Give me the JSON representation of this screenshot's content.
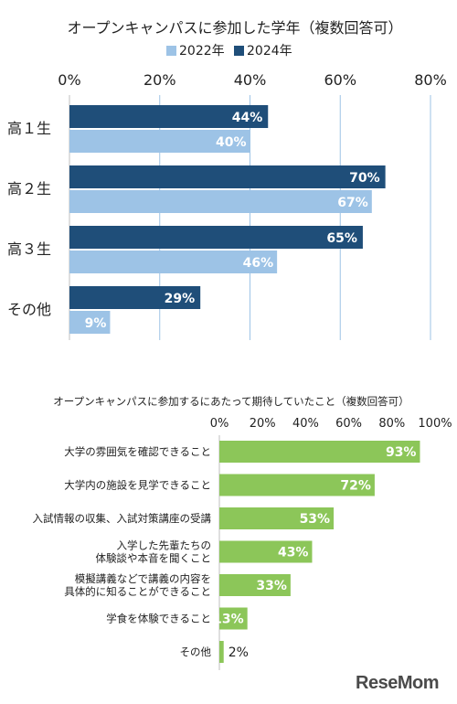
{
  "chart_data": [
    {
      "type": "bar",
      "orientation": "horizontal",
      "title": "オープンキャンパスに参加した学年（複数回答可）",
      "categories": [
        "高１生",
        "高２生",
        "高３生",
        "その他"
      ],
      "series": [
        {
          "name": "2024年",
          "values": [
            44,
            70,
            65,
            29
          ],
          "labels": [
            "44%",
            "70%",
            "65%",
            "29%"
          ]
        },
        {
          "name": "2022年",
          "values": [
            40,
            67,
            46,
            9
          ],
          "labels": [
            "40%",
            "67%",
            "46%",
            "9%"
          ]
        }
      ],
      "xlim": [
        0,
        80
      ],
      "ticks": [
        "0%",
        "20%",
        "40%",
        "60%",
        "80%"
      ],
      "legend_position": "top",
      "grid": true
    },
    {
      "type": "bar",
      "orientation": "horizontal",
      "title": "オープンキャンパスに参加するにあたって期待していたこと（複数回答可）",
      "categories": [
        "大学の雰囲気を確認できること",
        "大学内の施設を見学できること",
        "入試情報の収集、入試対策講座の受講",
        "入学した先輩たちの\n体験談や本音を聞くこと",
        "模擬講義などで講義の内容を\n具体的に知ることができること",
        "学食を体験できること",
        "その他"
      ],
      "values": [
        93,
        72,
        53,
        43,
        33,
        13,
        2
      ],
      "labels": [
        "93%",
        "72%",
        "53%",
        "43%",
        "33%",
        "13%",
        "2%"
      ],
      "xlim": [
        0,
        100
      ],
      "ticks": [
        "0%",
        "20%",
        "40%",
        "60%",
        "80%",
        "100%"
      ],
      "grid": false
    }
  ],
  "colors": {
    "y2022": "#9dc3e6",
    "y2024": "#1f4e79",
    "green": "#8cc659",
    "grid": "#9dc3e6",
    "text": "#222222"
  },
  "logo": {
    "text": "ReseMom",
    "mark": "resemom-logo"
  }
}
